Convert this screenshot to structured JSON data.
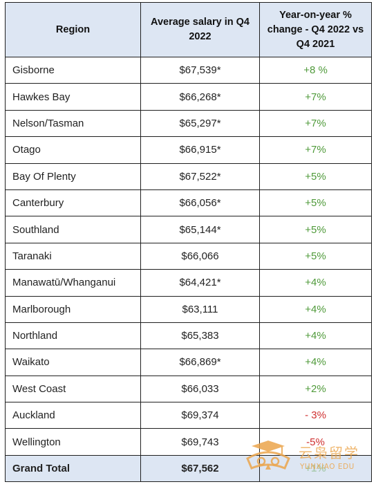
{
  "table": {
    "headers": {
      "region": "Region",
      "salary": "Average salary in Q4 2022",
      "change": "Year-on-year % change - Q4 2022 vs Q4 2021"
    },
    "rows": [
      {
        "region": "Gisborne",
        "salary": "$67,539*",
        "change": "+8 %"
      },
      {
        "region": "Hawkes Bay",
        "salary": "$66,268*",
        "change": "+7%"
      },
      {
        "region": "Nelson/Tasman",
        "salary": "$65,297*",
        "change": "+7%"
      },
      {
        "region": "Otago",
        "salary": "$66,915*",
        "change": "+7%"
      },
      {
        "region": "Bay Of Plenty",
        "salary": "$67,522*",
        "change": "+5%"
      },
      {
        "region": "Canterbury",
        "salary": "$66,056*",
        "change": "+5%"
      },
      {
        "region": "Southland",
        "salary": "$65,144*",
        "change": "+5%"
      },
      {
        "region": "Taranaki",
        "salary": "$66,066",
        "change": "+5%"
      },
      {
        "region": "Manawatū/Whanganui",
        "salary": "$64,421*",
        "change": "+4%"
      },
      {
        "region": "Marlborough",
        "salary": "$63,111",
        "change": "+4%"
      },
      {
        "region": "Northland",
        "salary": "$65,383",
        "change": "+4%"
      },
      {
        "region": "Waikato",
        "salary": "$66,869*",
        "change": "+4%"
      },
      {
        "region": "West Coast",
        "salary": "$66,033",
        "change": "+2%"
      },
      {
        "region": "Auckland",
        "salary": "$69,374",
        "change": "- 3%"
      },
      {
        "region": "Wellington",
        "salary": "$69,743",
        "change": "-5%"
      }
    ],
    "total": {
      "region": "Grand Total",
      "salary": "$67,562",
      "change": "+1%"
    }
  },
  "watermark": {
    "chinese": "云枭留学",
    "english": "YUNXIAO EDU"
  },
  "colors": {
    "header_bg": "#dde6f3",
    "positive": "#4f9a3a",
    "negative": "#cf2f2f",
    "watermark": "#eba54b"
  }
}
